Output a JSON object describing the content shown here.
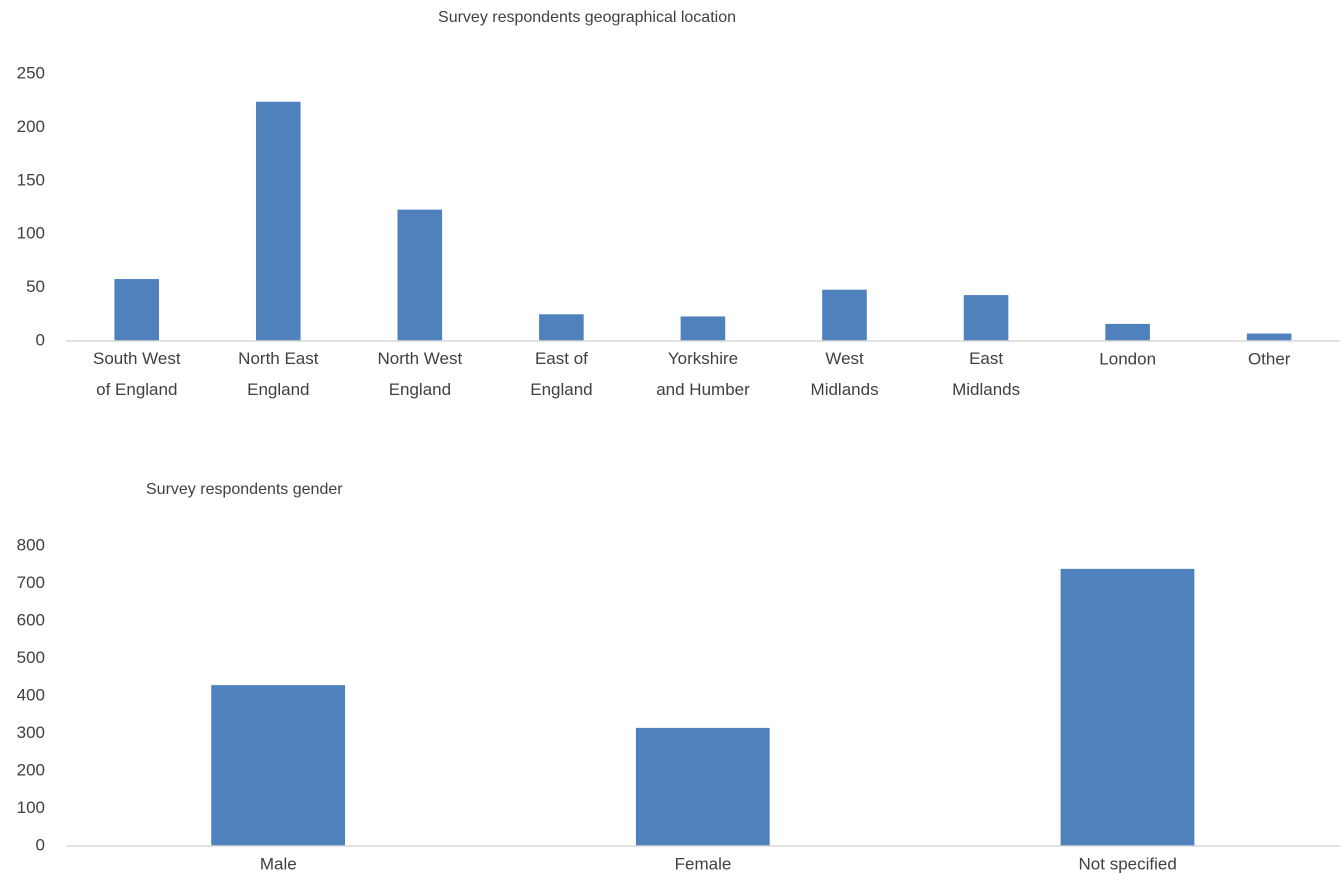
{
  "chart_data": [
    {
      "type": "bar",
      "title": "Survey respondents geographical location",
      "categories": [
        "South West of England",
        "North East England",
        "North West England",
        "East of England",
        "Yorkshire and Humber",
        "West Midlands",
        "East Midlands",
        "London",
        "Other"
      ],
      "values": [
        58,
        224,
        123,
        25,
        23,
        48,
        43,
        16,
        7
      ],
      "color": "#4f81bd",
      "ylim": [
        0,
        250
      ],
      "yticks": [
        0,
        50,
        100,
        150,
        200,
        250
      ],
      "grid": false
    },
    {
      "type": "bar",
      "title": "Survey respondents gender",
      "categories": [
        "Male",
        "Female",
        "Not specified"
      ],
      "values": [
        429,
        315,
        739
      ],
      "color": "#4f81bd",
      "ylim": [
        0,
        800
      ],
      "yticks": [
        0,
        100,
        200,
        300,
        400,
        500,
        600,
        700,
        800
      ],
      "grid": false
    }
  ]
}
